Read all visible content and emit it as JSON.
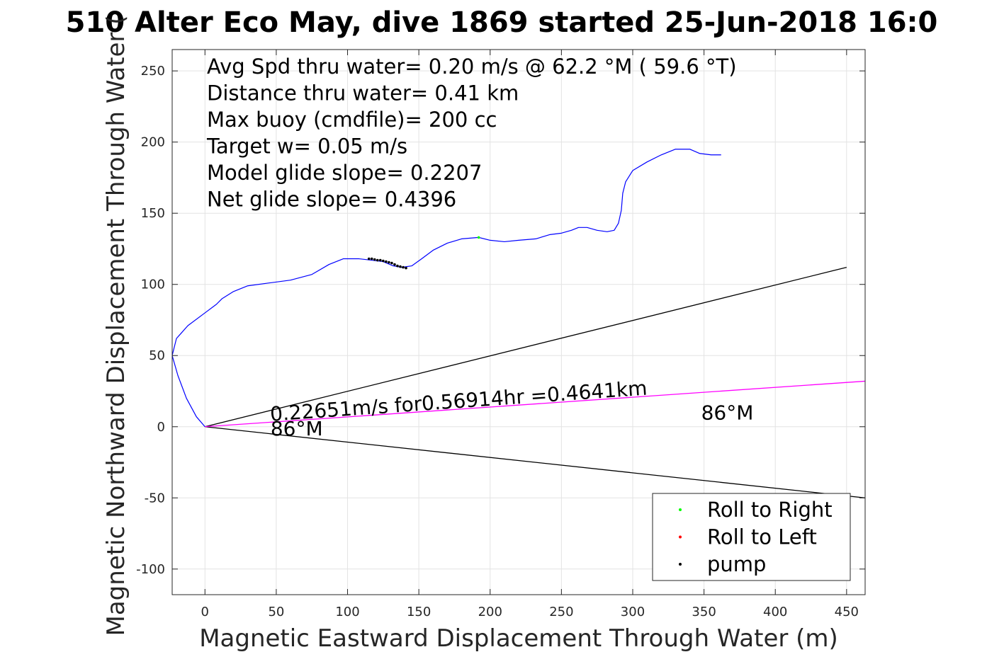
{
  "chart_data": {
    "type": "line",
    "title": "510 Alter Eco May, dive 1869 started 25-Jun-2018 16:0",
    "xlabel": "Magnetic Eastward Displacement Through Water (m)",
    "ylabel": "Magnetic Northward Displacement Through Water (",
    "xlim": [
      -23,
      463
    ],
    "ylim": [
      -118,
      265
    ],
    "xticks": [
      0,
      50,
      100,
      150,
      200,
      250,
      300,
      350,
      400,
      450
    ],
    "yticks": [
      -100,
      -50,
      0,
      50,
      100,
      150,
      200,
      250
    ],
    "grid": true,
    "info_lines": [
      "Avg Spd thru water=  0.20 m/s @  62.2 °M ( 59.6 °T)",
      "Distance thru water=  0.41 km",
      "Max buoy (cmdfile)= 200 cc",
      "Target w= 0.05 m/s",
      "Model glide slope= 0.2207",
      "Net glide slope= 0.4396"
    ],
    "track": {
      "color": "#0000ff",
      "x": [
        0,
        -6,
        -13,
        -19,
        -23,
        -20,
        -12,
        0,
        8,
        12,
        20,
        30,
        45,
        60,
        75,
        87,
        97,
        108,
        117,
        125,
        132,
        138,
        145,
        152,
        160,
        170,
        180,
        192,
        200,
        210,
        220,
        232,
        242,
        250,
        257,
        262,
        268,
        275,
        282,
        287,
        290,
        292,
        293,
        295,
        300,
        310,
        320,
        330,
        340,
        347,
        355,
        362
      ],
      "y": [
        0,
        7,
        20,
        36,
        50,
        62,
        71,
        80,
        86,
        90,
        95,
        99,
        101,
        103,
        107,
        114,
        118,
        118,
        117,
        116,
        113,
        112,
        113,
        118,
        124,
        129,
        132,
        133,
        131,
        130,
        131,
        132,
        135,
        136,
        138,
        140,
        140,
        138,
        137,
        138,
        143,
        152,
        164,
        172,
        180,
        186,
        191,
        195,
        195,
        192,
        191,
        191
      ]
    },
    "pump_points": {
      "color": "#000000",
      "x": [
        115,
        117,
        119,
        121,
        123,
        125,
        127,
        129,
        131,
        133,
        135,
        137,
        139,
        141
      ],
      "y": [
        118,
        118,
        117.5,
        117,
        117,
        116.5,
        116,
        115.5,
        115,
        114,
        113,
        112.5,
        112,
        111.5
      ]
    },
    "roll_right_points": {
      "color": "#00ff00",
      "x": [
        192
      ],
      "y": [
        133
      ]
    },
    "bearing_lines": [
      {
        "color": "#000000",
        "x": [
          0,
          450
        ],
        "y": [
          0,
          112
        ]
      },
      {
        "color": "#000000",
        "x": [
          0,
          463
        ],
        "y": [
          0,
          -50
        ]
      },
      {
        "color": "#ff00ff",
        "x": [
          0,
          463
        ],
        "y": [
          0,
          32
        ]
      }
    ],
    "annotations": [
      {
        "text": "0.22651m/s for0.56914hr =0.4641km",
        "x": 46,
        "y": 4,
        "rotate": -4
      },
      {
        "text": "86°M",
        "x": 46,
        "y": -6,
        "rotate": 0
      },
      {
        "text": "86°M",
        "x": 348,
        "y": 5,
        "rotate": 0
      }
    ],
    "legend": {
      "position": "bottom-right",
      "entries": [
        {
          "label": "Roll to Right",
          "color": "#00ff00"
        },
        {
          "label": "Roll to Left",
          "color": "#ff0000"
        },
        {
          "label": "pump",
          "color": "#000000"
        }
      ]
    }
  }
}
